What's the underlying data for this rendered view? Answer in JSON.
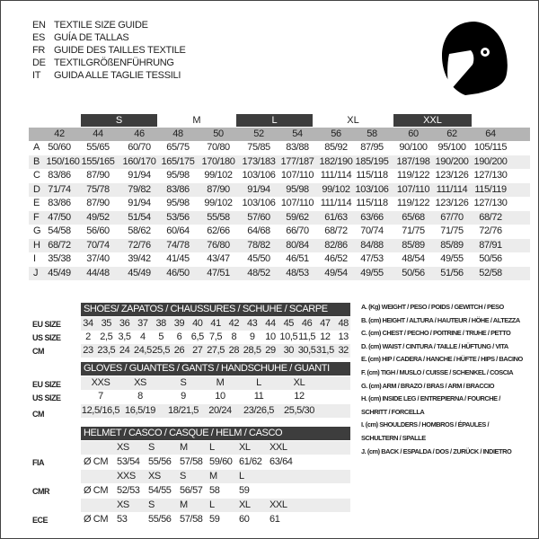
{
  "titles": [
    {
      "code": "EN",
      "text": "TEXTILE SIZE GUIDE"
    },
    {
      "code": "ES",
      "text": "GUÍA DE TALLAS"
    },
    {
      "code": "FR",
      "text": "GUIDE DES TAILLES TEXTILE"
    },
    {
      "code": "DE",
      "text": "TEXTILGRÖßENFÜHRUNG"
    },
    {
      "code": "IT",
      "text": "GUIDA ALLE TAGLIE TESSILI"
    }
  ],
  "icon": "helmet-icon",
  "textile": {
    "letter_sizes": [
      "S",
      "M",
      "L",
      "XL",
      "XXL"
    ],
    "sizes": [
      "42",
      "44",
      "46",
      "48",
      "50",
      "52",
      "54",
      "56",
      "58",
      "60",
      "62",
      "64"
    ],
    "rows": [
      {
        "label": "A",
        "values": [
          "50/60",
          "55/65",
          "60/70",
          "65/75",
          "70/80",
          "75/85",
          "83/88",
          "85/92",
          "87/95",
          "90/100",
          "95/100",
          "105/115"
        ]
      },
      {
        "label": "B",
        "values": [
          "150/160",
          "155/165",
          "160/170",
          "165/175",
          "170/180",
          "173/183",
          "177/187",
          "182/190",
          "185/195",
          "187/198",
          "190/200",
          "190/200"
        ]
      },
      {
        "label": "C",
        "values": [
          "83/86",
          "87/90",
          "91/94",
          "95/98",
          "99/102",
          "103/106",
          "107/110",
          "111/114",
          "115/118",
          "119/122",
          "123/126",
          "127/130"
        ]
      },
      {
        "label": "D",
        "values": [
          "71/74",
          "75/78",
          "79/82",
          "83/86",
          "87/90",
          "91/94",
          "95/98",
          "99/102",
          "103/106",
          "107/110",
          "111/114",
          "115/119"
        ]
      },
      {
        "label": "E",
        "values": [
          "83/86",
          "87/90",
          "91/94",
          "95/98",
          "99/102",
          "103/106",
          "107/110",
          "111/114",
          "115/118",
          "119/122",
          "123/126",
          "127/130"
        ]
      },
      {
        "label": "F",
        "values": [
          "47/50",
          "49/52",
          "51/54",
          "53/56",
          "55/58",
          "57/60",
          "59/62",
          "61/63",
          "63/66",
          "65/68",
          "67/70",
          "68/72"
        ]
      },
      {
        "label": "G",
        "values": [
          "54/58",
          "56/60",
          "58/62",
          "60/64",
          "62/66",
          "64/68",
          "66/70",
          "68/72",
          "70/74",
          "71/75",
          "71/75",
          "72/76"
        ]
      },
      {
        "label": "H",
        "values": [
          "68/72",
          "70/74",
          "72/76",
          "74/78",
          "76/80",
          "78/82",
          "80/84",
          "82/86",
          "84/88",
          "85/89",
          "85/89",
          "87/91"
        ]
      },
      {
        "label": "I",
        "values": [
          "35/38",
          "37/40",
          "39/42",
          "41/45",
          "43/47",
          "45/50",
          "46/51",
          "46/52",
          "47/53",
          "48/54",
          "49/55",
          "50/56"
        ]
      },
      {
        "label": "J",
        "values": [
          "45/49",
          "44/48",
          "45/49",
          "46/50",
          "47/51",
          "48/52",
          "48/53",
          "49/54",
          "49/55",
          "50/56",
          "51/56",
          "52/58"
        ]
      }
    ]
  },
  "shoes": {
    "title": "SHOES/ ZAPATOS / CHAUSSURES / SCHUHE / SCARPE",
    "rows": [
      {
        "label": "EU SIZE",
        "values": [
          "34",
          "35",
          "36",
          "37",
          "38",
          "39",
          "40",
          "41",
          "42",
          "43",
          "44",
          "45",
          "46",
          "47",
          "48"
        ]
      },
      {
        "label": "US SIZE",
        "values": [
          "2",
          "2,5",
          "3,5",
          "4",
          "5",
          "6",
          "6,5",
          "7,5",
          "8",
          "9",
          "10",
          "10,5",
          "11,5",
          "12",
          "13"
        ]
      },
      {
        "label": "CM",
        "values": [
          "23",
          "23,5",
          "24",
          "24,5",
          "25,5",
          "26",
          "27",
          "27,5",
          "28",
          "28,5",
          "29",
          "30",
          "30,5",
          "31,5",
          "32"
        ]
      }
    ]
  },
  "gloves": {
    "title": "GLOVES / GUANTES / GANTS / HANDSCHUHE / GUANTI",
    "rows": [
      {
        "label": "EU SIZE",
        "values": [
          "XXS",
          "XS",
          "S",
          "M",
          "L",
          "XL"
        ]
      },
      {
        "label": "US SIZE",
        "values": [
          "7",
          "8",
          "9",
          "10",
          "11",
          "12"
        ]
      },
      {
        "label": "CM",
        "values": [
          "12,5/16,5",
          "16,5/19",
          "18/21,5",
          "20/24",
          "23/26,5",
          "25,5/30"
        ]
      }
    ]
  },
  "helmet": {
    "title": "HELMET / CASCO / CASQUE / HELM / CASCO",
    "unit": "Ø CM",
    "groups": [
      {
        "label": "FIA",
        "sizes": [
          "XS",
          "S",
          "M",
          "L",
          "XL",
          "XXL"
        ],
        "values": [
          "53/54",
          "55/56",
          "57/58",
          "59/60",
          "61/62",
          "63/64"
        ]
      },
      {
        "label": "CMR",
        "sizes": [
          "XXS",
          "XS",
          "S",
          "M",
          "L"
        ],
        "values": [
          "52/53",
          "54/55",
          "56/57",
          "58",
          "59"
        ]
      },
      {
        "label": "ECE",
        "sizes": [
          "XS",
          "S",
          "M",
          "L",
          "XL",
          "XXL"
        ],
        "values": [
          "53",
          "55/56",
          "57/58",
          "59",
          "60",
          "61"
        ]
      }
    ]
  },
  "legend": [
    "A. (Kg) WEIGHT / PESO / POIDS / GEWITCH / PESO",
    "B. (cm) HEIGHT / ALTURA / HAUTEUR / HÖHE / ALTEZZA",
    "C. (cm) CHEST / PECHO / POITRINE / TRUHE / PETTO",
    "D. (cm) WAIST / CINTURA / TAILLE / HÜFTUNG / VITA",
    "E. (cm) HIP / CADERA / HANCHE / HÜFTE / HIPS /  BACINO",
    "F.  (cm) TIGH / MUSLO / CUISSE / SCHENKEL / COSCIA",
    "G. (cm) ARM  / BRAZO / BRAS / ARM / BRACCIO",
    "H. (cm) INSIDE LEG / ENTREPIERNA / FOURCHE /",
    "SCHRITT / FORCELLA",
    "I.  (cm) SHOULDERS / HOMBROS / ÉPAULES /",
    "SCHULTERN / SPALLE",
    "J. (cm) BACK / ESPALDA / DOS / ZURÜCK / INDIETRO"
  ]
}
